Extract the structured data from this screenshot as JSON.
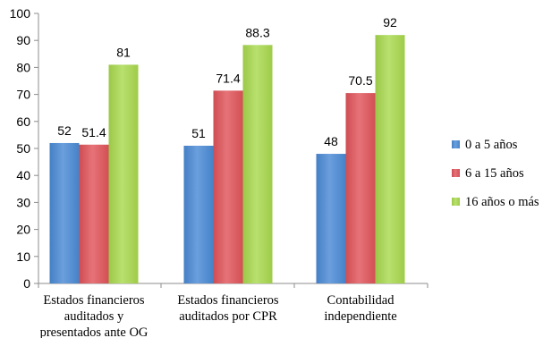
{
  "chart_data": {
    "type": "bar",
    "title": "",
    "xlabel": "",
    "ylabel": "",
    "ylim": [
      0,
      100
    ],
    "yticks": [
      "0",
      "10",
      "20",
      "30",
      "40",
      "50",
      "60",
      "70",
      "80",
      "90",
      "100"
    ],
    "grid": false,
    "legend_position": "right",
    "categories": [
      [
        "Estados financieros",
        "auditados y",
        "presentados ante OG"
      ],
      [
        "Estados financieros",
        "auditados por CPR"
      ],
      [
        "Contabilidad",
        "independiente"
      ]
    ],
    "series": [
      {
        "name": "0 a 5 años",
        "color": "#4a8ad6",
        "values": [
          52,
          51,
          48
        ],
        "labels": [
          "52",
          "51",
          "48"
        ]
      },
      {
        "name": "6 a 15 años",
        "color": "#e0545a",
        "values": [
          51.4,
          71.4,
          70.5
        ],
        "labels": [
          "51.4",
          "71.4",
          "70.5"
        ]
      },
      {
        "name": "16 años o más",
        "color": "#a9d94e",
        "values": [
          81,
          88.3,
          92
        ],
        "labels": [
          "81",
          "88.3",
          "92"
        ]
      }
    ]
  }
}
